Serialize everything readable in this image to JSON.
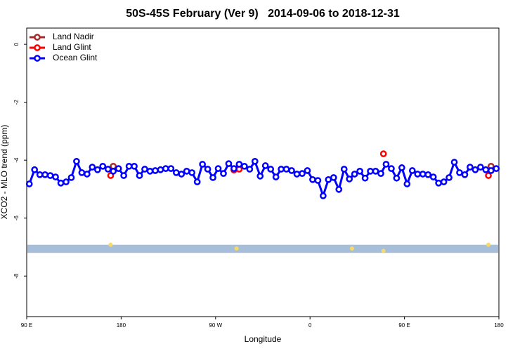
{
  "chart_data": {
    "type": "line",
    "title": "50S-45S February (Ver 9)   2014-09-06 to 2018-12-31",
    "xlabel": "Longitude",
    "ylabel": "XCO2 - MLO trend (ppm)",
    "xlim": [
      90,
      540
    ],
    "ylim": [
      -9.4,
      0.56
    ],
    "xticks": [
      {
        "value": 90,
        "label": "90 E"
      },
      180,
      {
        "value": 270,
        "label": "90 W"
      },
      {
        "value": 360,
        "label": "0"
      },
      {
        "value": 450,
        "label": "90 E"
      },
      {
        "value": 540,
        "label": "180"
      }
    ],
    "yticks": [
      0,
      -2,
      -4,
      -6,
      -8
    ],
    "legend": "top-left",
    "band": {
      "ylim": [
        -7.2,
        -6.92
      ],
      "color": "#a7bedb"
    },
    "markers": {
      "color": "#f7d86a",
      "x": [
        170,
        290,
        400,
        430,
        530
      ],
      "y": [
        -6.92,
        -7.05,
        -7.05,
        -7.13,
        -6.92
      ]
    },
    "series": [
      {
        "name": "Land Nadir",
        "color": "#a52a2a",
        "connect": false,
        "x": [
          172.5,
          532.5
        ],
        "values": [
          -4.21,
          -4.21
        ]
      },
      {
        "name": "Land Glint",
        "color": "#ff0000",
        "connect": false,
        "x": [
          170,
          287.5,
          292.5,
          430,
          530
        ],
        "values": [
          -4.53,
          -4.34,
          -4.31,
          -3.78,
          -4.53
        ]
      },
      {
        "name": "Ocean Glint",
        "color": "#0000ff",
        "connect": true,
        "x": [
          92.5,
          97.5,
          102.5,
          107.5,
          112.5,
          117.5,
          122.5,
          127.5,
          132.5,
          137.5,
          142.5,
          147.5,
          152.5,
          157.5,
          162.5,
          167.5,
          172.5,
          177.5,
          182.5,
          187.5,
          192.5,
          197.5,
          202.5,
          207.5,
          212.5,
          217.5,
          222.5,
          227.5,
          232.5,
          237.5,
          242.5,
          247.5,
          252.5,
          257.5,
          262.5,
          267.5,
          272.5,
          277.5,
          282.5,
          287.5,
          292.5,
          297.5,
          302.5,
          307.5,
          312.5,
          317.5,
          322.5,
          327.5,
          332.5,
          337.5,
          342.5,
          347.5,
          352.5,
          357.5,
          362.5,
          367.5,
          372.5,
          377.5,
          382.5,
          387.5,
          392.5,
          397.5,
          402.5,
          407.5,
          412.5,
          417.5,
          422.5,
          427.5,
          432.5,
          437.5,
          442.5,
          447.5,
          452.5,
          457.5,
          462.5,
          467.5,
          472.5,
          477.5,
          482.5,
          487.5,
          492.5,
          497.5,
          502.5,
          507.5,
          512.5,
          517.5,
          522.5,
          527.5,
          532.5,
          537.5
        ],
        "values": [
          -4.82,
          -4.33,
          -4.5,
          -4.5,
          -4.53,
          -4.58,
          -4.79,
          -4.75,
          -4.6,
          -4.04,
          -4.43,
          -4.48,
          -4.24,
          -4.33,
          -4.21,
          -4.31,
          -4.38,
          -4.29,
          -4.53,
          -4.21,
          -4.21,
          -4.53,
          -4.31,
          -4.38,
          -4.36,
          -4.33,
          -4.29,
          -4.29,
          -4.43,
          -4.48,
          -4.38,
          -4.43,
          -4.75,
          -4.14,
          -4.31,
          -4.6,
          -4.29,
          -4.46,
          -4.12,
          -4.29,
          -4.14,
          -4.21,
          -4.31,
          -4.04,
          -4.55,
          -4.19,
          -4.31,
          -4.58,
          -4.31,
          -4.31,
          -4.36,
          -4.48,
          -4.46,
          -4.36,
          -4.67,
          -4.7,
          -5.23,
          -4.67,
          -4.6,
          -5.01,
          -4.31,
          -4.65,
          -4.48,
          -4.38,
          -4.62,
          -4.38,
          -4.38,
          -4.46,
          -4.14,
          -4.29,
          -4.62,
          -4.26,
          -4.82,
          -4.36,
          -4.48,
          -4.48,
          -4.5,
          -4.58,
          -4.79,
          -4.75,
          -4.6,
          -4.07,
          -4.43,
          -4.5,
          -4.24,
          -4.33,
          -4.24,
          -4.33,
          -4.36,
          -4.29
        ]
      }
    ]
  }
}
